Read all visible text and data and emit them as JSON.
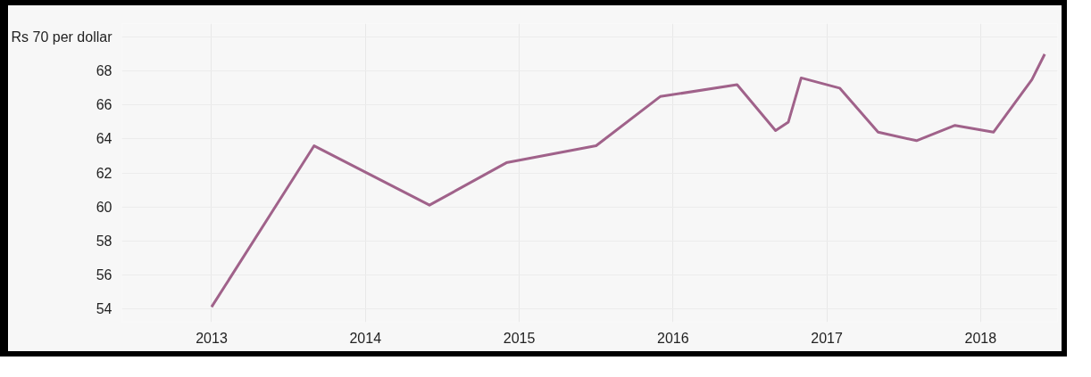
{
  "chart_data": {
    "type": "line",
    "x": [
      "2013-01",
      "2013-09",
      "2014-06",
      "2014-12",
      "2015-07",
      "2015-12",
      "2016-06",
      "2016-09",
      "2016-10",
      "2016-11",
      "2017-02",
      "2017-05",
      "2017-08",
      "2017-11",
      "2018-02",
      "2018-05",
      "2018-06"
    ],
    "series": [
      {
        "color": "#a0628a",
        "values": [
          54.1,
          63.6,
          60.1,
          62.6,
          63.6,
          66.5,
          67.2,
          64.5,
          65.0,
          67.6,
          67.0,
          64.4,
          63.9,
          64.8,
          64.4,
          67.5,
          69.0
        ]
      }
    ],
    "xlim": [
      "2012-06",
      "2018-07"
    ],
    "xticks": [
      "2013",
      "2014",
      "2015",
      "2016",
      "2017",
      "2018"
    ],
    "ylim": [
      53.2,
      70.8
    ],
    "yticks": [
      54,
      56,
      58,
      60,
      62,
      64,
      66,
      68,
      {
        "value": 70,
        "label": "Rs 70 per dollar"
      }
    ],
    "grid": true,
    "marker": "none",
    "line_style": "solid"
  }
}
